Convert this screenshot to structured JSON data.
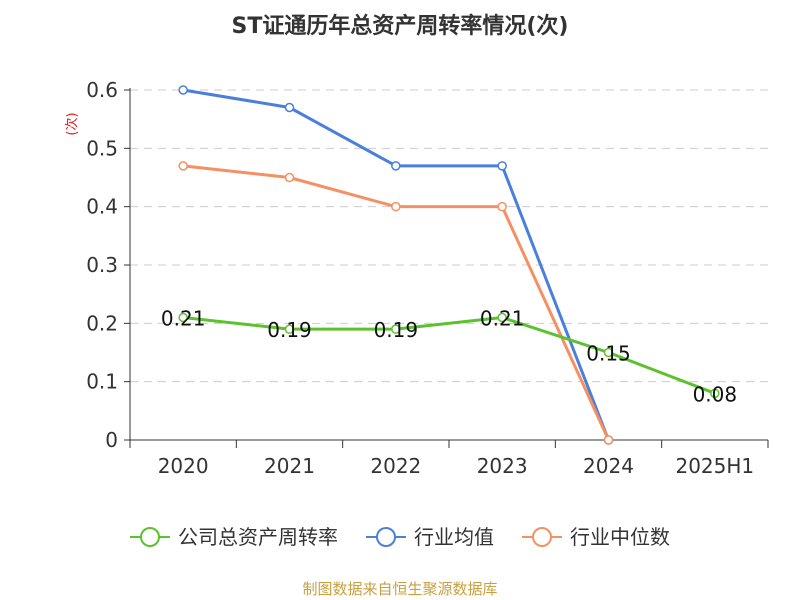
{
  "chart_data": {
    "type": "line",
    "title": "ST证通历年总资产周转率情况(次)",
    "ylabel": "(次)",
    "xlabel": "",
    "categories": [
      "2020",
      "2021",
      "2022",
      "2023",
      "2024",
      "2025H1"
    ],
    "ylim": [
      0,
      0.6
    ],
    "yticks": [
      "0",
      "0.1",
      "0.2",
      "0.3",
      "0.4",
      "0.5",
      "0.6"
    ],
    "grid": true,
    "legend_position": "bottom",
    "series": [
      {
        "name": "公司总资产周转率",
        "color": "#5cc12e",
        "values": [
          0.21,
          0.19,
          0.19,
          0.21,
          0.15,
          0.08
        ],
        "labels": [
          "0.21",
          "0.19",
          "0.19",
          "0.21",
          "0.15",
          "0.08"
        ]
      },
      {
        "name": "行业均值",
        "color": "#4a7fdc",
        "values": [
          0.6,
          0.57,
          0.47,
          0.47,
          0.0,
          null
        ]
      },
      {
        "name": "行业中位数",
        "color": "#f59062",
        "values": [
          0.47,
          0.45,
          0.4,
          0.4,
          0.0,
          null
        ]
      }
    ]
  },
  "source": "制图数据来自恒生聚源数据库"
}
